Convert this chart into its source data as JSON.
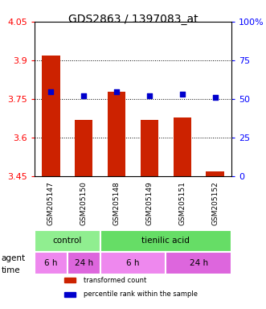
{
  "title": "GDS2863 / 1397083_at",
  "samples": [
    "GSM205147",
    "GSM205150",
    "GSM205148",
    "GSM205149",
    "GSM205151",
    "GSM205152"
  ],
  "bar_values": [
    3.92,
    3.67,
    3.78,
    3.67,
    3.68,
    3.47
  ],
  "bar_bottom": 3.45,
  "percentile_values": [
    55,
    52,
    55,
    52,
    53,
    51
  ],
  "ylim_left": [
    3.45,
    4.05
  ],
  "ylim_right": [
    0,
    100
  ],
  "yticks_left": [
    3.45,
    3.6,
    3.75,
    3.9,
    4.05
  ],
  "ytick_labels_left": [
    "3.45",
    "3.6",
    "3.75",
    "3.9",
    "4.05"
  ],
  "yticks_right": [
    0,
    25,
    50,
    75,
    100
  ],
  "ytick_labels_right": [
    "0",
    "25",
    "50",
    "75",
    "100%"
  ],
  "hlines": [
    3.6,
    3.75,
    3.9
  ],
  "bar_color": "#cc2200",
  "dot_color": "#0000cc",
  "agent_row": [
    {
      "label": "control",
      "start": 0,
      "end": 2,
      "color": "#90ee90"
    },
    {
      "label": "tienilic acid",
      "start": 2,
      "end": 6,
      "color": "#66dd66"
    }
  ],
  "time_row": [
    {
      "label": "6 h",
      "start": 0,
      "end": 1,
      "color": "#ee88ee"
    },
    {
      "label": "24 h",
      "start": 1,
      "end": 2,
      "color": "#dd66dd"
    },
    {
      "label": "6 h",
      "start": 2,
      "end": 4,
      "color": "#ee88ee"
    },
    {
      "label": "24 h",
      "start": 4,
      "end": 6,
      "color": "#dd66dd"
    }
  ],
  "legend_items": [
    {
      "label": "transformed count",
      "color": "#cc2200"
    },
    {
      "label": "percentile rank within the sample",
      "color": "#0000cc"
    }
  ],
  "axis_bg": "#e8e8e8",
  "plot_bg": "#ffffff"
}
